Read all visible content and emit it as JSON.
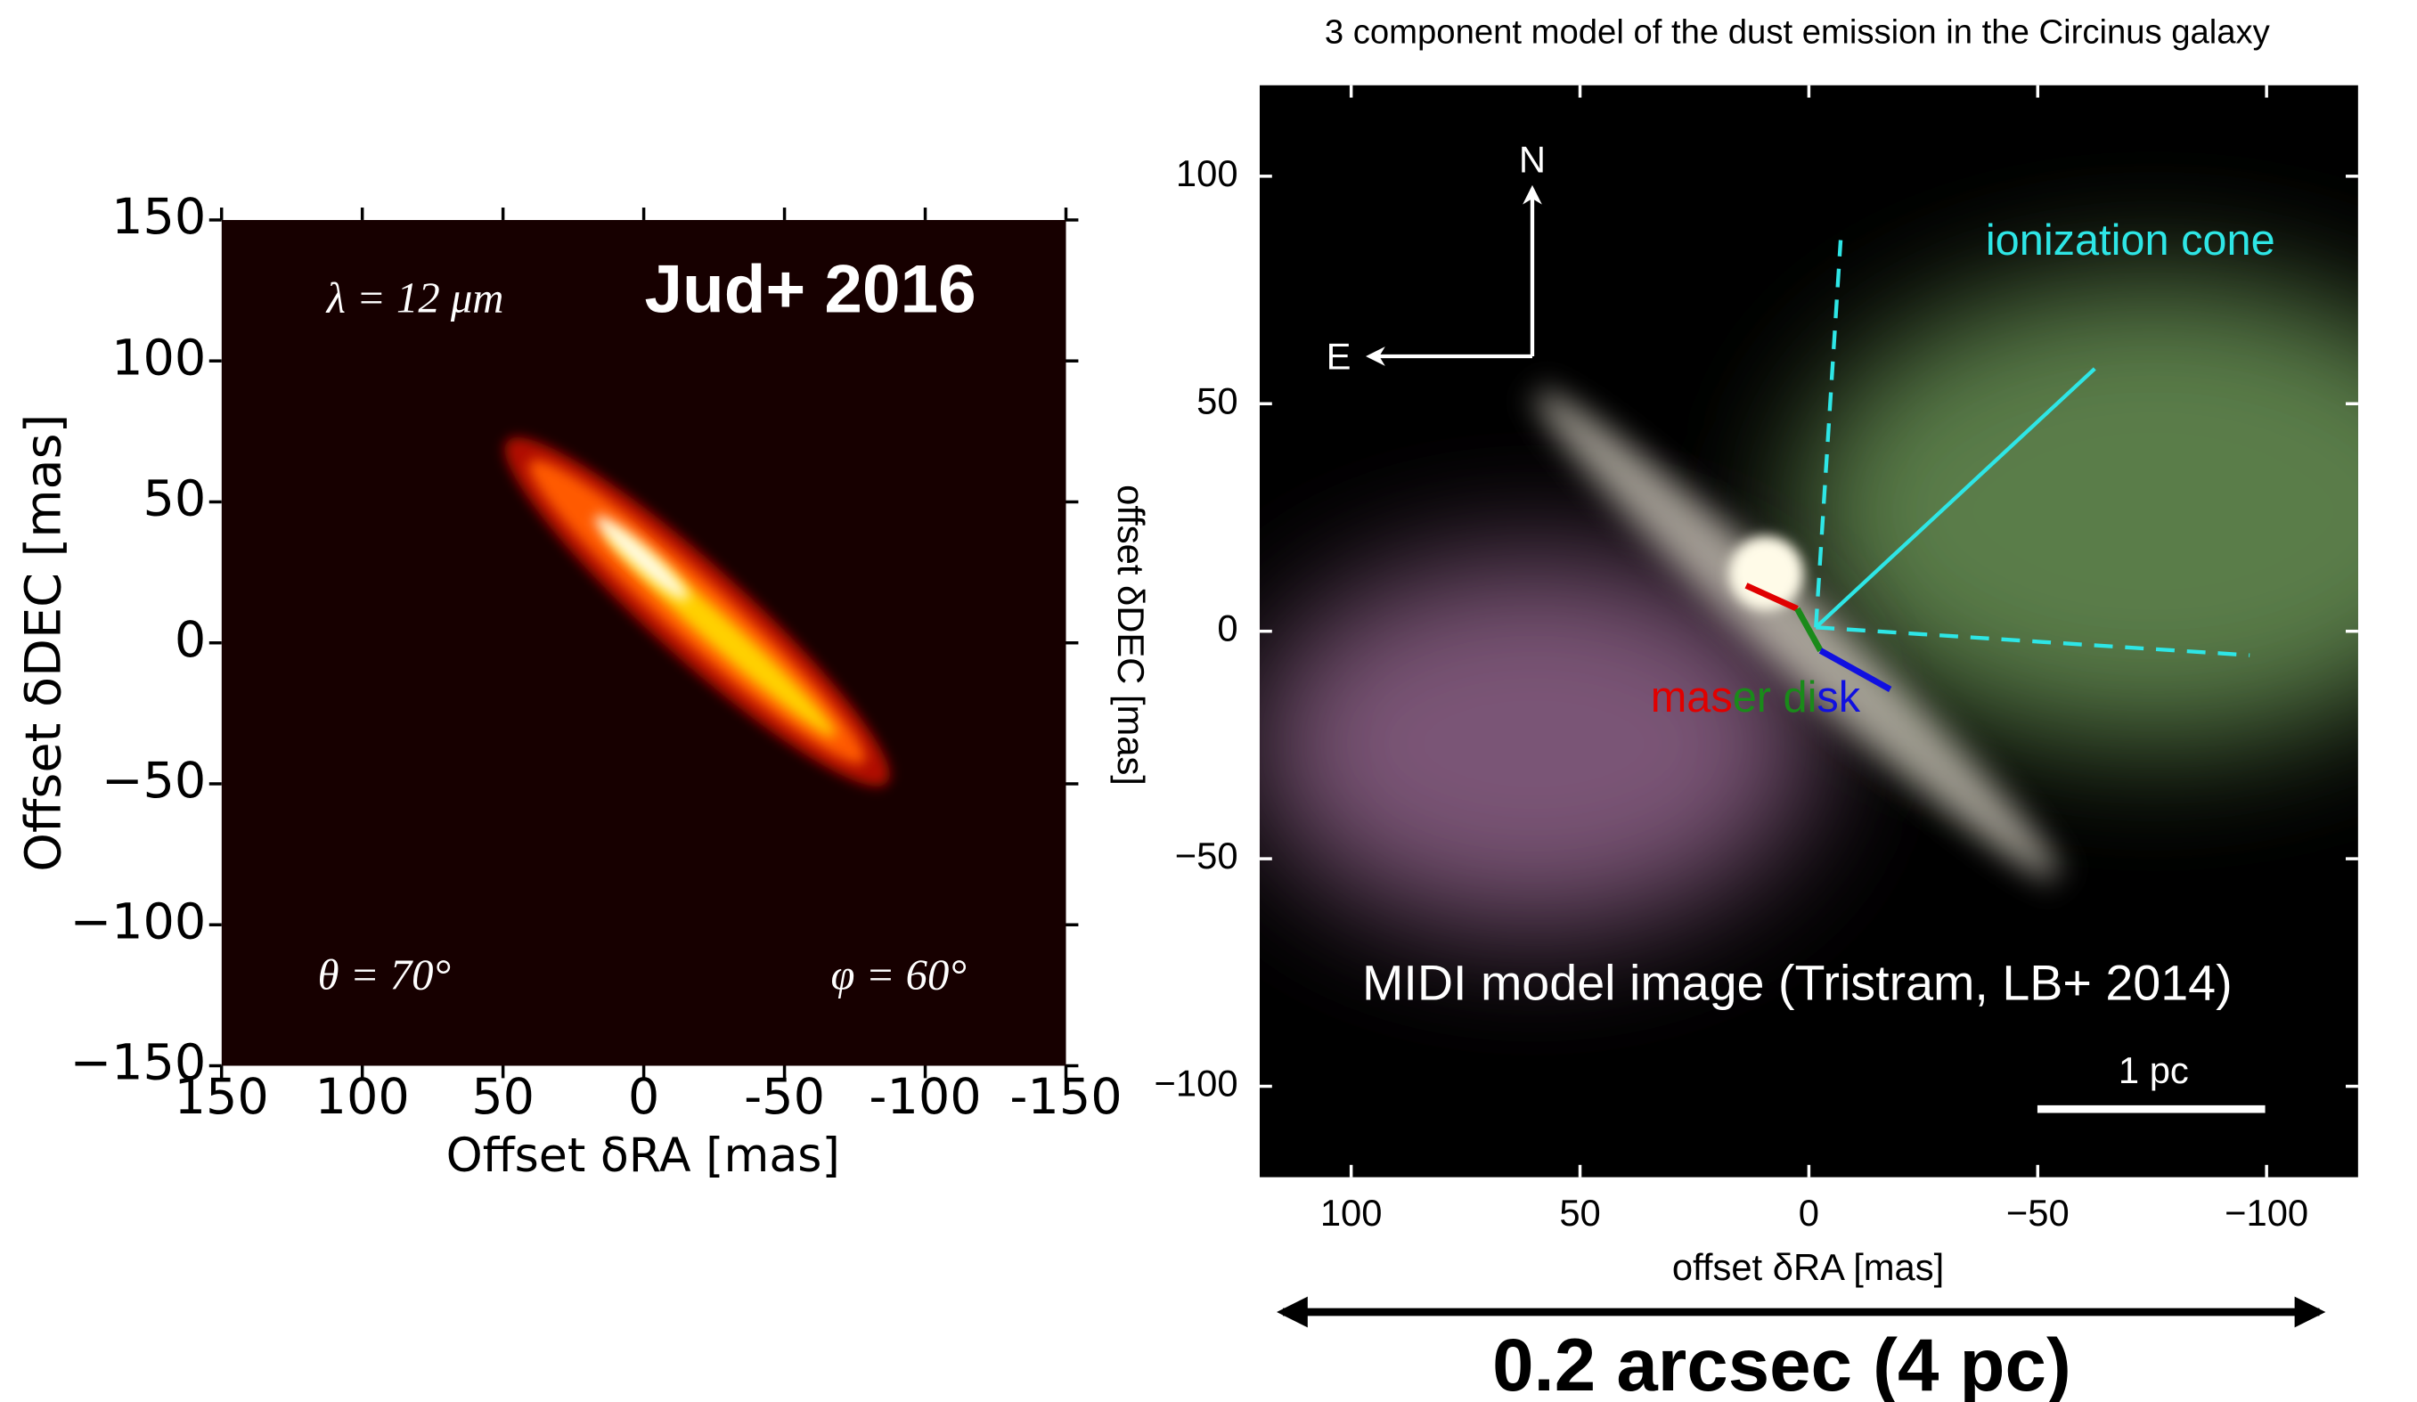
{
  "chart_data": [
    {
      "type": "heatmap",
      "xlabel": "Offset δRA [mas]",
      "ylabel": "Offset δDEC [mas]",
      "xlim": [
        150,
        -150
      ],
      "ylim": [
        -150,
        150
      ],
      "xticks": [
        150,
        100,
        50,
        0,
        -50,
        -100,
        -150
      ],
      "yticks": [
        {
          "value": -150,
          "label": "−150"
        },
        {
          "value": -100,
          "label": "−100"
        },
        {
          "value": -50,
          "label": "−50"
        },
        0,
        50,
        100,
        150
      ],
      "annotations": [
        "λ = 12 μm",
        "Jud+ 2016",
        "θ = 70°",
        "φ = 60°"
      ]
    },
    {
      "type": "heatmap",
      "title": "3 component model of the dust emission in the Circinus galaxy",
      "xlabel": "offset δRA [mas]",
      "ylabel": "offset δDEC [mas]",
      "xlim": [
        120,
        -120
      ],
      "ylim": [
        -120,
        120
      ],
      "xticks": [
        100,
        50,
        0,
        {
          "value": -50,
          "label": "−50"
        },
        {
          "value": -100,
          "label": "−100"
        }
      ],
      "yticks": [
        {
          "value": -100,
          "label": "−100"
        },
        {
          "value": -50,
          "label": "−50"
        },
        0,
        50,
        100
      ],
      "annotations": [
        "N",
        "E",
        "ionization cone",
        "MIDI model image (Tristram, LB+ 2014)",
        "1 pc",
        "0.2 arcsec (4 pc)"
      ],
      "maser_disk": [
        "mas",
        "er di",
        "sk"
      ]
    }
  ]
}
